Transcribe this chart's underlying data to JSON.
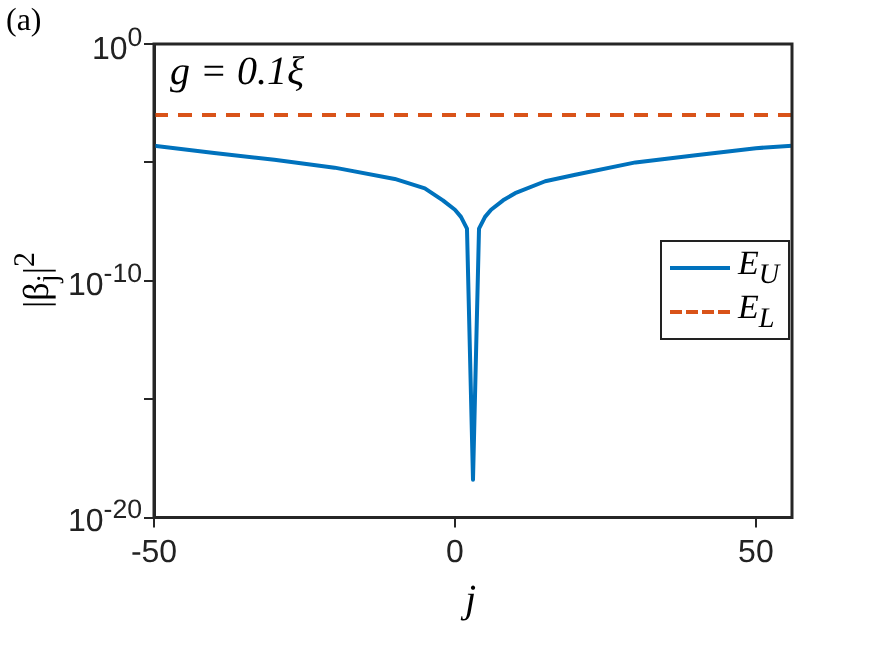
{
  "chart_data": {
    "type": "line",
    "xlabel": "j",
    "ylabel": "|β$_{j}$|$^{2}$",
    "annotations": [
      "(a)",
      "g = 0.1ξ"
    ],
    "xlim": [
      -50,
      56
    ],
    "xticks": [
      -50,
      0,
      50
    ],
    "ylim": [
      1e-20,
      1
    ],
    "yticks": [
      {
        "value": 1,
        "label": "10$^{0}$"
      },
      {
        "value": 1e-05,
        "label": null
      },
      {
        "value": 1e-10,
        "label": "10$^{-10}$"
      },
      {
        "value": 1e-15,
        "label": null
      },
      {
        "value": 1e-20,
        "label": "10$^{-20}$"
      }
    ],
    "log": "y",
    "grid": false,
    "legend": "right",
    "marker": "none",
    "series": [
      {
        "name": "E$_{U}$",
        "color": "#0072bd",
        "line_style": "solid",
        "x": [
          -50,
          -40,
          -30,
          -20,
          -10,
          -5,
          -2,
          0,
          1,
          2,
          3,
          4,
          5,
          6,
          8,
          10,
          15,
          20,
          30,
          40,
          50,
          56
        ],
        "values": [
          5e-05,
          2.5e-05,
          1.3e-05,
          6e-06,
          2e-06,
          8e-07,
          2.5e-07,
          1e-07,
          5e-08,
          1.6e-08,
          4e-19,
          1.6e-08,
          5e-08,
          1e-07,
          2.5e-07,
          5e-07,
          1.6e-06,
          3e-06,
          1e-05,
          2e-05,
          4e-05,
          5e-05
        ]
      },
      {
        "name": "E$_{L}$",
        "color": "#d95319",
        "line_style": "dashed",
        "x": [
          -50,
          56
        ],
        "values": [
          0.001,
          0.001
        ]
      }
    ]
  }
}
